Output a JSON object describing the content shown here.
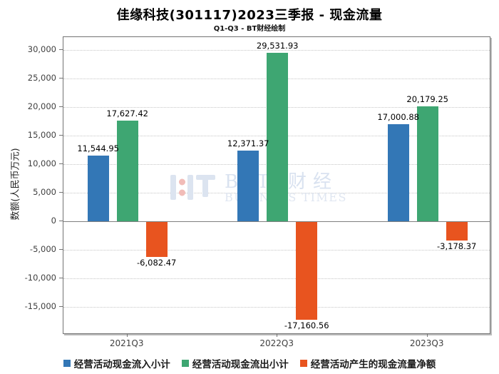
{
  "header": {
    "title": "佳缘科技(301117)2023三季报 - 现金流量",
    "subtitle": "Q1-Q3 - BT财经绘制"
  },
  "watermark": {
    "cn_text": "B T 财经",
    "en_text": "BUSINESS TIMES"
  },
  "chart_data": {
    "type": "bar",
    "title": "佳缘科技(301117)2023三季报 - 现金流量",
    "subtitle": "Q1-Q3 - BT财经绘制",
    "xlabel": "",
    "ylabel": "数额(人民币万元)",
    "categories": [
      "2021Q3",
      "2022Q3",
      "2023Q3"
    ],
    "series": [
      {
        "key": "inflow",
        "name": "经营活动现金流入小计",
        "color": "#3377B6",
        "values": [
          11544.95,
          12371.37,
          17000.88
        ],
        "labels": [
          "11,544.95",
          "12,371.37",
          "17,000.88"
        ]
      },
      {
        "key": "outflow",
        "name": "经营活动现金流出小计",
        "color": "#3EA672",
        "values": [
          17627.42,
          29531.93,
          20179.25
        ],
        "labels": [
          "17,627.42",
          "29,531.93",
          "20,179.25"
        ]
      },
      {
        "key": "net",
        "name": "经营活动产生的现金流量净额",
        "color": "#E8541F",
        "values": [
          -6082.47,
          -17160.56,
          -3178.37
        ],
        "labels": [
          "-6,082.47",
          "-17,160.56",
          "-3,178.37"
        ]
      }
    ],
    "ylim": [
      -19600,
      32300
    ],
    "yticks": [
      30000,
      25000,
      20000,
      15000,
      10000,
      5000,
      0,
      -5000,
      -10000,
      -15000
    ],
    "ytick_labels": [
      "30,000",
      "25,000",
      "20,000",
      "15,000",
      "10,000",
      "5,000",
      "0",
      "-5,000",
      "-10,000",
      "-15,000"
    ],
    "grid": "horizontal-dotted",
    "legend_position": "bottom"
  }
}
